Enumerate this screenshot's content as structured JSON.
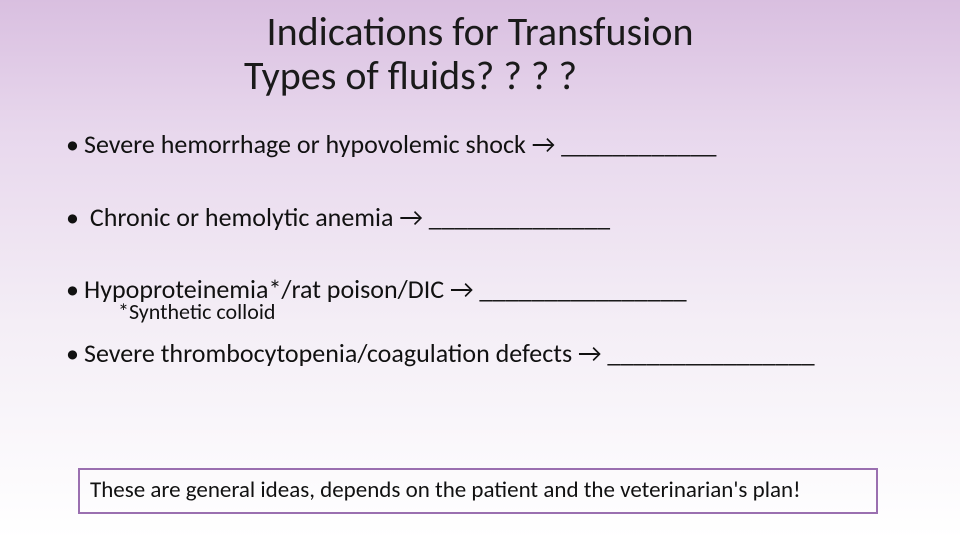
{
  "slide": {
    "background_gradient_top": "#d9bfe0",
    "background_gradient_bottom": "#ffffff",
    "title_color": "#1a1a1a",
    "title_fontsize": 40,
    "body_fontsize": 26,
    "subnote_fontsize": 22,
    "footer_fontsize": 23,
    "footer_border_color": "#9a6fb0",
    "title": {
      "line1": "Indications for Transfusion",
      "line2": "Types of fluids? ? ? ?"
    },
    "bullets": [
      {
        "text": "Severe hemorrhage or hypovolemic shock →  ____________"
      },
      {
        "text": " Chronic or hemolytic anemia →  ______________"
      },
      {
        "text": "Hypoproteinemia*/rat poison/DIC → ________________",
        "subnote": "*Synthetic colloid"
      },
      {
        "text": "Severe thrombocytopenia/coagulation defects →      ________________"
      }
    ],
    "footer": "These are general ideas, depends on the patient and the veterinarian's plan!"
  }
}
